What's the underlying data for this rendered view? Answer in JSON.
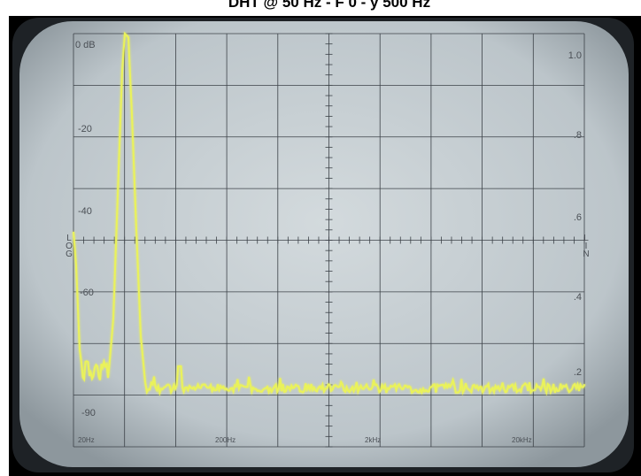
{
  "header": {
    "title": "DHT @ 50 Hz - F 0 - y 500 Hz"
  },
  "screen": {
    "left_labels": [
      "0 dB",
      "-20",
      "-40",
      "-60",
      "-90"
    ],
    "right_labels": [
      "1.0",
      ".8",
      ".6",
      ".4",
      ".2"
    ],
    "log_label": "LOG",
    "lin_label": "LIN",
    "freq_labels": [
      "20Hz",
      "200Hz",
      "2kHz",
      "20kHz"
    ]
  }
}
